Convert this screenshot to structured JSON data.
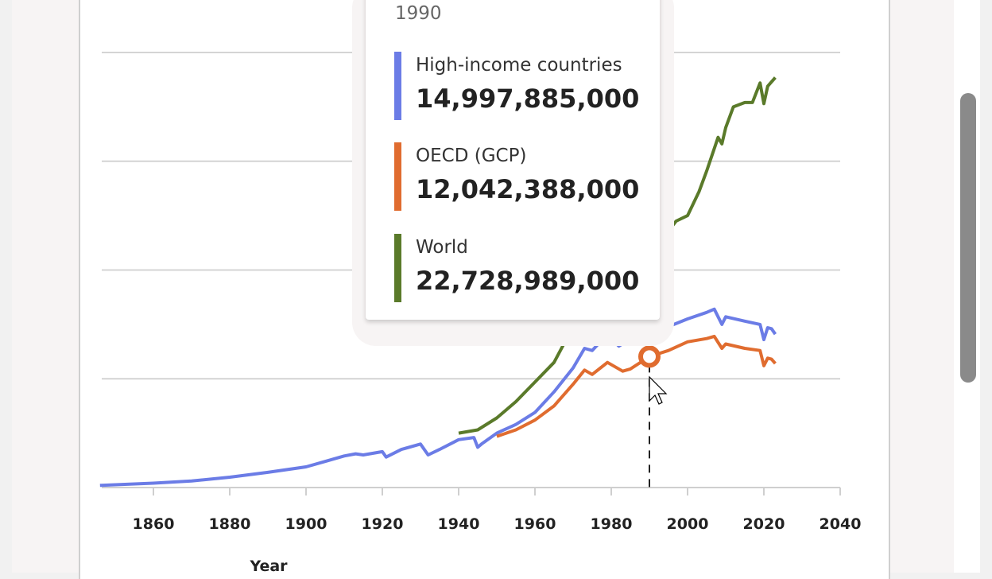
{
  "chart_data": {
    "type": "line",
    "title": "",
    "xlabel": "Year",
    "ylabel": "",
    "xlim": [
      1846,
      2040
    ],
    "ylim": [
      0,
      40000000000
    ],
    "x_ticks": [
      1860,
      1880,
      1900,
      1920,
      1940,
      1960,
      1980,
      2000,
      2020,
      2040
    ],
    "y_gridlines": [
      10000000000,
      20000000000,
      30000000000,
      40000000000
    ],
    "grid": true,
    "hover_year": 1990,
    "series": [
      {
        "name": "High-income countries",
        "color": "#6b7ce6",
        "x": [
          1846,
          1860,
          1870,
          1880,
          1890,
          1900,
          1905,
          1910,
          1913,
          1915,
          1920,
          1921,
          1925,
          1930,
          1932,
          1935,
          1940,
          1944,
          1945,
          1946,
          1950,
          1955,
          1960,
          1965,
          1970,
          1973,
          1975,
          1979,
          1982,
          1985,
          1990,
          1991,
          1995,
          2000,
          2005,
          2007,
          2009,
          2010,
          2015,
          2019,
          2020,
          2021,
          2022,
          2023
        ],
        "y": [
          0.2,
          0.4,
          0.6,
          0.95,
          1.4,
          1.9,
          2.4,
          2.9,
          3.1,
          3.0,
          3.3,
          2.8,
          3.5,
          4.0,
          3.0,
          3.5,
          4.4,
          4.6,
          3.7,
          4.0,
          5.0,
          5.8,
          6.9,
          8.8,
          11.0,
          12.8,
          12.6,
          14.1,
          13.0,
          13.7,
          15.0,
          14.6,
          14.8,
          15.5,
          16.1,
          16.4,
          15.0,
          15.7,
          15.3,
          15.0,
          13.6,
          14.7,
          14.6,
          14.1
        ]
      },
      {
        "name": "OECD (GCP)",
        "color": "#e06c2f",
        "x": [
          1950,
          1955,
          1960,
          1965,
          1970,
          1973,
          1975,
          1979,
          1983,
          1985,
          1990,
          1995,
          2000,
          2005,
          2007,
          2009,
          2010,
          2015,
          2019,
          2020,
          2021,
          2022,
          2023
        ],
        "y": [
          4.7,
          5.3,
          6.2,
          7.5,
          9.5,
          10.8,
          10.4,
          11.5,
          10.7,
          10.9,
          12.04,
          12.6,
          13.4,
          13.7,
          13.9,
          12.8,
          13.2,
          12.8,
          12.6,
          11.2,
          11.9,
          11.8,
          11.4
        ]
      },
      {
        "name": "World",
        "color": "#5a7a2a",
        "x": [
          1940,
          1945,
          1950,
          1955,
          1960,
          1965,
          1970,
          1975,
          1980,
          1985,
          1990,
          1992,
          1995,
          1997,
          2000,
          2003,
          2005,
          2008,
          2009,
          2010,
          2012,
          2015,
          2017,
          2019,
          2020,
          2021,
          2022,
          2023
        ],
        "y": [
          5.0,
          5.3,
          6.4,
          7.9,
          9.7,
          11.5,
          14.8,
          17.0,
          19.5,
          20.5,
          22.73,
          22.8,
          23.6,
          24.5,
          25.0,
          27.2,
          29.1,
          32.2,
          31.6,
          33.1,
          35.0,
          35.4,
          35.4,
          37.2,
          35.3,
          36.9,
          37.3,
          37.7
        ]
      }
    ],
    "y_unit_scale": "billions"
  },
  "tooltip": {
    "year": "1990",
    "entries": [
      {
        "label": "High-income countries",
        "value": "14,997,885,000",
        "color": "#6b7ce6"
      },
      {
        "label": "OECD (GCP)",
        "value": "12,042,388,000",
        "color": "#e06c2f"
      },
      {
        "label": "World",
        "value": "22,728,989,000",
        "color": "#5a7a2a"
      }
    ]
  }
}
